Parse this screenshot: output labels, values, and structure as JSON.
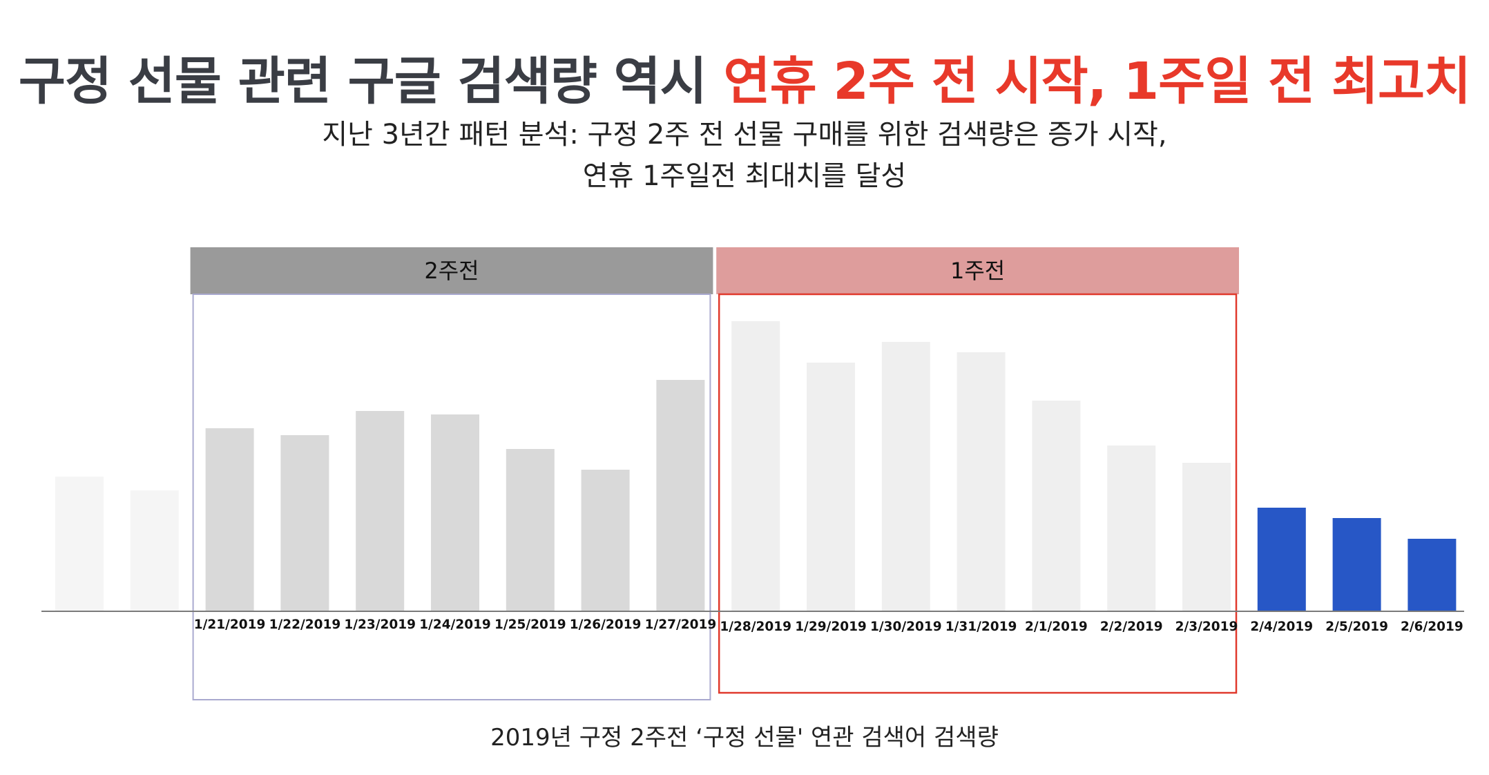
{
  "title": {
    "part1": "구정 선물 관련 구글 검색량 역시 ",
    "part2": "연휴 2주 전 시작, 1주일 전 최고치"
  },
  "subtitle": {
    "line1": "지난 3년간 패턴 분석: 구정 2주 전 선물 구매를 위한 검색량은 증가 시작,",
    "line2": "연휴 1주일전 최대치를 달성"
  },
  "caption": "2019년 구정 2주전 ‘구정 선물' 연관 검색어 검색량",
  "colors": {
    "title_highlight": "#e8392a",
    "bar_faded": "#f5f5f5",
    "bar_two_weeks": "#d9d9d9",
    "bar_one_week": "#efefef",
    "bar_after": "#2757c6",
    "group_two_weeks_header": "#9a9a9a",
    "group_two_weeks_border": "#a9a9cf",
    "group_one_week_header": "#de9d9c",
    "group_one_week_border": "#e0392c"
  },
  "chart_data": {
    "type": "bar",
    "categories": [
      "",
      "",
      "1/21/2019",
      "1/22/2019",
      "1/23/2019",
      "1/24/2019",
      "1/25/2019",
      "1/26/2019",
      "1/27/2019",
      "1/28/2019",
      "1/29/2019",
      "1/30/2019",
      "1/31/2019",
      "2/1/2019",
      "2/2/2019",
      "2/3/2019",
      "2/4/2019",
      "2/5/2019",
      "2/6/2019"
    ],
    "values": [
      39,
      35,
      53,
      51,
      58,
      57,
      47,
      41,
      67,
      84,
      72,
      78,
      75,
      61,
      48,
      43,
      30,
      27,
      21
    ],
    "groups": [
      {
        "label": "2주전",
        "first": 2,
        "last": 8
      },
      {
        "label": "1주전",
        "first": 9,
        "last": 15
      }
    ],
    "ylim": [
      0,
      100
    ],
    "grid": false,
    "legend": "none"
  }
}
